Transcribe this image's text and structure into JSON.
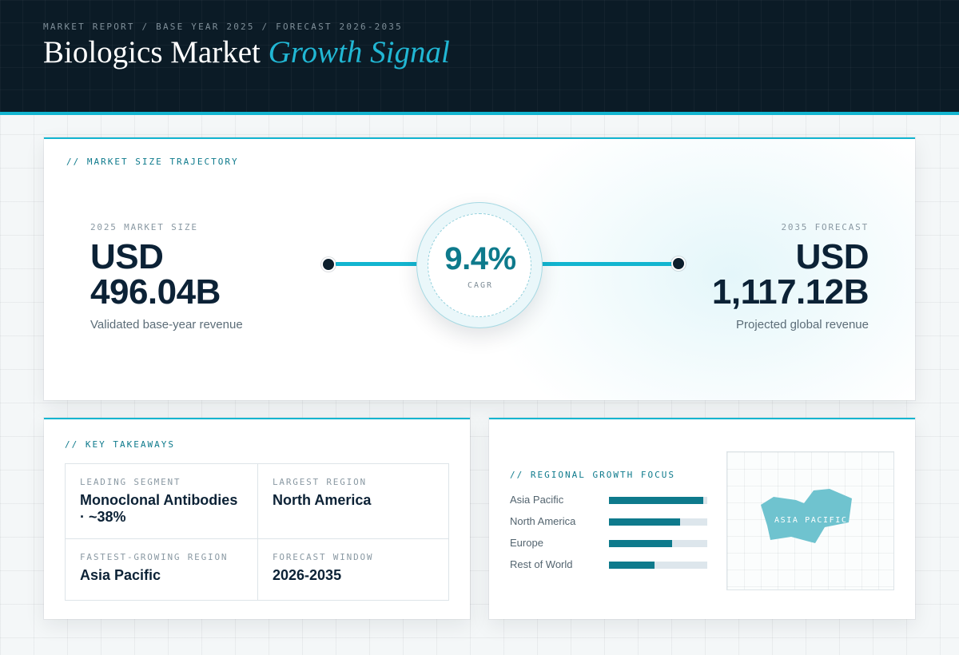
{
  "header": {
    "eyebrow": "MARKET REPORT / BASE YEAR 2025 / FORECAST 2026-2035",
    "title_main": "Biologics Market",
    "title_accent": "Growth Signal"
  },
  "trajectory": {
    "label": "// MARKET SIZE TRAJECTORY",
    "start": {
      "label": "2025 MARKET SIZE",
      "currency": "USD",
      "amount": "496.04B",
      "caption": "Validated base-year revenue"
    },
    "cagr": {
      "value": "9.4%",
      "label": "CAGR"
    },
    "end": {
      "label": "2035 FORECAST",
      "currency": "USD",
      "amount": "1,117.12B",
      "caption": "Projected global revenue"
    }
  },
  "takeaways": {
    "label": "// KEY TAKEAWAYS",
    "items": [
      {
        "label": "LEADING SEGMENT",
        "value": "Monoclonal Antibodies · ~38%"
      },
      {
        "label": "LARGEST REGION",
        "value": "North America"
      },
      {
        "label": "FASTEST-GROWING REGION",
        "value": "Asia Pacific"
      },
      {
        "label": "FORECAST WINDOW",
        "value": "2026-2035"
      }
    ]
  },
  "regional": {
    "label": "// REGIONAL GROWTH FOCUS",
    "rows": [
      {
        "name": "Asia Pacific",
        "level": 0.96
      },
      {
        "name": "North America",
        "level": 0.72
      },
      {
        "name": "Europe",
        "level": 0.64
      },
      {
        "name": "Rest of World",
        "level": 0.46
      }
    ],
    "map_label": "ASIA PACIFIC"
  },
  "colors": {
    "navy": "#0b1b26",
    "accent": "#12b5d0",
    "teal": "#0e7a8c",
    "map_fill": "#6fc3cf"
  }
}
